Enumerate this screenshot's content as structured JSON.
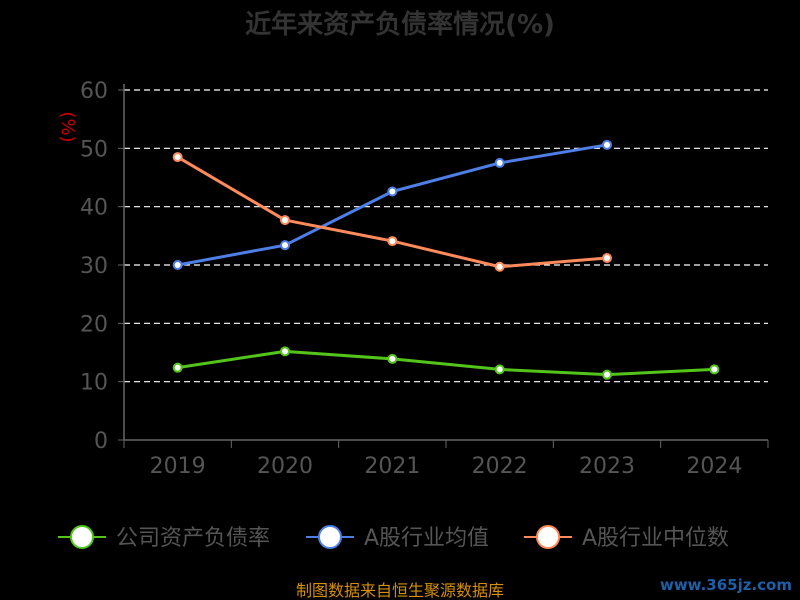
{
  "chart_data": {
    "type": "line",
    "title": "近年来资产负债率情况(%)",
    "ylabel": "(%)",
    "xlabel": "",
    "x": [
      "2019",
      "2020",
      "2021",
      "2022",
      "2023",
      "2024"
    ],
    "yticks": [
      "0",
      "10",
      "20",
      "30",
      "40",
      "50",
      "60"
    ],
    "ylim": [
      0,
      60
    ],
    "grid": true,
    "legend_position": "bottom",
    "series": [
      {
        "name": "公司资产负债率",
        "color": "#52c41a",
        "values": [
          12.4,
          15.2,
          13.9,
          12.1,
          11.2,
          12.1
        ]
      },
      {
        "name": "A股行业均值",
        "color": "#4e7ee6",
        "values": [
          30.0,
          33.4,
          42.6,
          47.5,
          50.6,
          null
        ]
      },
      {
        "name": "A股行业中位数",
        "color": "#ff8a5c",
        "values": [
          48.5,
          37.7,
          34.1,
          29.7,
          31.2,
          null
        ]
      }
    ]
  },
  "footer": {
    "source": "制图数据来自恒生聚源数据库",
    "watermark": "www.365jz.com"
  },
  "colors": {
    "background": "#000000",
    "title": "#333333",
    "axis": "#666666",
    "tick_label": "#555555",
    "ylabel": "#cc0000",
    "grid": "#ffffff",
    "source": "#d49000",
    "legend_text": "#555555"
  }
}
